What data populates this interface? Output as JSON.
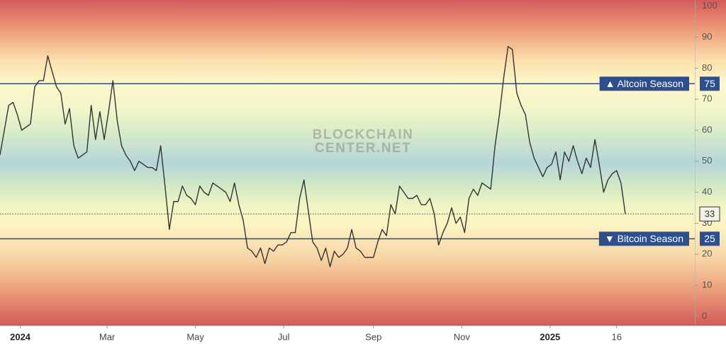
{
  "chart_data": {
    "type": "line",
    "watermark": [
      "BLOCKCHAIN",
      "CENTER.NET"
    ],
    "x": [
      "2023-12-18",
      "2023-12-21",
      "2023-12-24",
      "2023-12-27",
      "2023-12-30",
      "2024-01-02",
      "2024-01-05",
      "2024-01-08",
      "2024-01-11",
      "2024-01-14",
      "2024-01-17",
      "2024-01-20",
      "2024-01-23",
      "2024-01-26",
      "2024-01-29",
      "2024-02-01",
      "2024-02-04",
      "2024-02-07",
      "2024-02-10",
      "2024-02-13",
      "2024-02-16",
      "2024-02-19",
      "2024-02-22",
      "2024-02-25",
      "2024-02-28",
      "2024-03-02",
      "2024-03-05",
      "2024-03-08",
      "2024-03-11",
      "2024-03-14",
      "2024-03-17",
      "2024-03-20",
      "2024-03-23",
      "2024-03-26",
      "2024-03-29",
      "2024-04-01",
      "2024-04-04",
      "2024-04-07",
      "2024-04-10",
      "2024-04-13",
      "2024-04-16",
      "2024-04-19",
      "2024-04-22",
      "2024-04-25",
      "2024-04-28",
      "2024-05-01",
      "2024-05-04",
      "2024-05-07",
      "2024-05-10",
      "2024-05-13",
      "2024-05-16",
      "2024-05-19",
      "2024-05-22",
      "2024-05-25",
      "2024-05-28",
      "2024-05-31",
      "2024-06-03",
      "2024-06-06",
      "2024-06-09",
      "2024-06-12",
      "2024-06-15",
      "2024-06-18",
      "2024-06-21",
      "2024-06-24",
      "2024-06-27",
      "2024-06-30",
      "2024-07-03",
      "2024-07-06",
      "2024-07-09",
      "2024-07-12",
      "2024-07-15",
      "2024-07-18",
      "2024-07-21",
      "2024-07-24",
      "2024-07-27",
      "2024-07-30",
      "2024-08-02",
      "2024-08-05",
      "2024-08-08",
      "2024-08-11",
      "2024-08-14",
      "2024-08-17",
      "2024-08-20",
      "2024-08-23",
      "2024-08-26",
      "2024-08-29",
      "2024-09-01",
      "2024-09-04",
      "2024-09-07",
      "2024-09-10",
      "2024-09-13",
      "2024-09-16",
      "2024-09-19",
      "2024-09-22",
      "2024-09-25",
      "2024-09-28",
      "2024-10-01",
      "2024-10-04",
      "2024-10-07",
      "2024-10-10",
      "2024-10-13",
      "2024-10-16",
      "2024-10-19",
      "2024-10-22",
      "2024-10-25",
      "2024-10-28",
      "2024-10-31",
      "2024-11-03",
      "2024-11-06",
      "2024-11-09",
      "2024-11-12",
      "2024-11-15",
      "2024-11-18",
      "2024-11-21",
      "2024-11-24",
      "2024-11-27",
      "2024-11-30",
      "2024-12-03",
      "2024-12-06",
      "2024-12-09",
      "2024-12-12",
      "2024-12-15",
      "2024-12-18",
      "2024-12-21",
      "2024-12-24",
      "2024-12-27",
      "2024-12-30",
      "2025-01-02",
      "2025-01-05",
      "2025-01-08",
      "2025-01-11",
      "2025-01-14",
      "2025-01-17",
      "2025-01-20",
      "2025-01-23",
      "2025-01-26",
      "2025-01-29",
      "2025-02-01",
      "2025-02-04",
      "2025-02-07",
      "2025-02-10",
      "2025-02-13",
      "2025-02-16",
      "2025-02-19",
      "2025-02-22"
    ],
    "series": [
      {
        "color": "#333333",
        "values": [
          52,
          60,
          68,
          69,
          65,
          60,
          61,
          62,
          74,
          76,
          76,
          84,
          79,
          74,
          72,
          62,
          67,
          55,
          51,
          52,
          53,
          68,
          57,
          66,
          57,
          66,
          76,
          63,
          55,
          52,
          50,
          47,
          50,
          49,
          48,
          48,
          47,
          55,
          42,
          28,
          37,
          37,
          42,
          39,
          38,
          36,
          42,
          40,
          39,
          43,
          42,
          41,
          40,
          37,
          43,
          36,
          31,
          22,
          21,
          19,
          22,
          17,
          22,
          21,
          23,
          23,
          24,
          27,
          27,
          38,
          44,
          34,
          24,
          22,
          18,
          22,
          16,
          21,
          19,
          20,
          22,
          28,
          22,
          21,
          19,
          19,
          19,
          24,
          28,
          26,
          36,
          33,
          42,
          40,
          38,
          38,
          39,
          36,
          36,
          38,
          33,
          23,
          27,
          30,
          35,
          30,
          32,
          27,
          38,
          41,
          39,
          43,
          42,
          41,
          55,
          65,
          77,
          87,
          86,
          72,
          68,
          65,
          56,
          51,
          48,
          45,
          48,
          49,
          53,
          44,
          53,
          50,
          55,
          50,
          46,
          51,
          48,
          57,
          49,
          40,
          44,
          46,
          47,
          43,
          33
        ]
      }
    ],
    "reference_lines": [
      {
        "label": "▲ Altcoin Season",
        "value": 75,
        "color": "#2d4f8e"
      },
      {
        "label": "▼ Bitcoin Season",
        "value": 25,
        "color": "#2d4f8e"
      }
    ],
    "xlim": [
      "2023-12-18",
      "2025-04-11"
    ],
    "xticks": [
      {
        "value": "2024-01-01",
        "label": "2024"
      },
      {
        "value": "2024-03-01",
        "label": "Mar"
      },
      {
        "value": "2024-05-01",
        "label": "May"
      },
      {
        "value": "2024-07-01",
        "label": "Jul"
      },
      {
        "value": "2024-09-01",
        "label": "Sep"
      },
      {
        "value": "2024-11-01",
        "label": "Nov"
      },
      {
        "value": "2025-01-01",
        "label": "2025"
      },
      {
        "value": "2025-02-16",
        "label": "16"
      }
    ],
    "ylim": [
      -3,
      102
    ],
    "yticks": [
      0,
      10,
      20,
      30,
      40,
      50,
      60,
      70,
      80,
      90,
      100
    ],
    "y_axis_side": "right",
    "grid": false
  }
}
